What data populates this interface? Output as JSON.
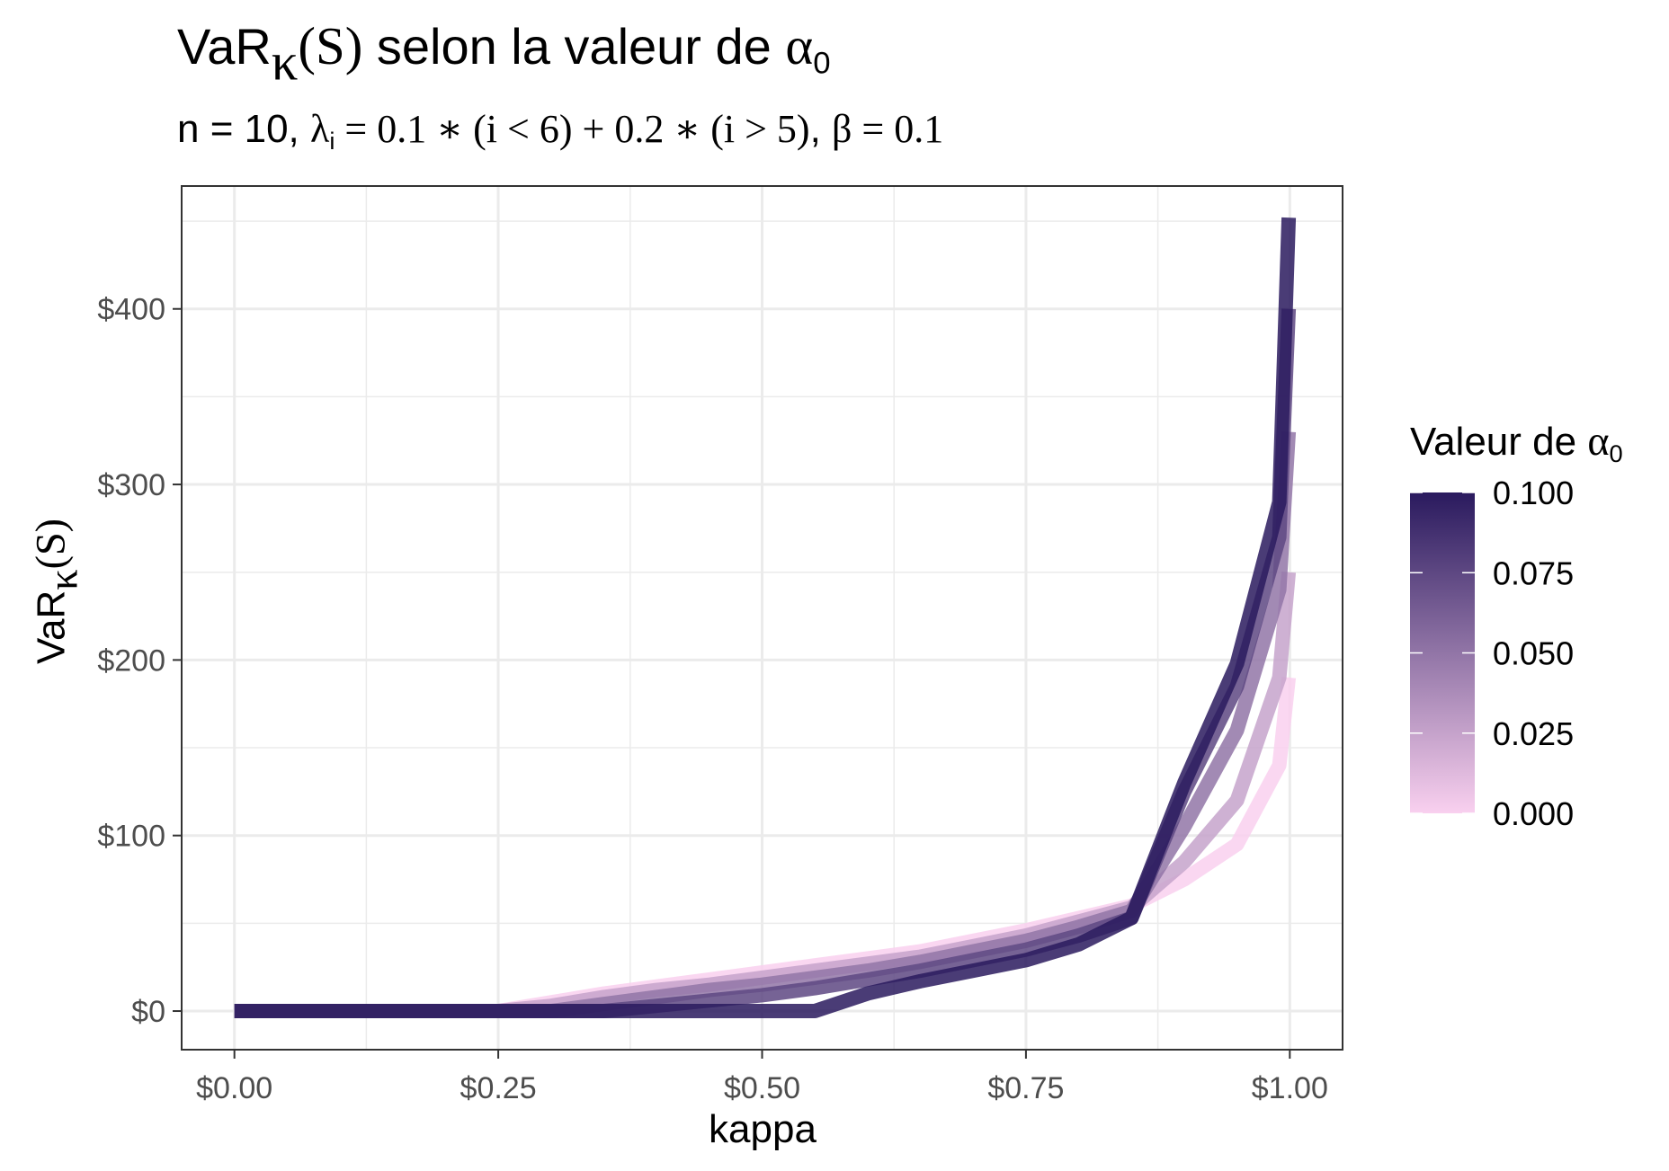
{
  "title": {
    "prefix": "VaR",
    "kappa_sym": "κ",
    "paren_s": "(S)",
    "middle": " selon la valeur de ",
    "alpha_sym": "α",
    "alpha_sub": "0"
  },
  "subtitle": {
    "t1": "n = 10, ",
    "lambda_sym": "λ",
    "lambda_sub": "i",
    "t2": " = 0.1 ∗ ",
    "t3": "(i < 6)",
    "t4": " + 0.2 ∗ ",
    "t5": "(i > 5)",
    "t6": ", ",
    "beta_sym": "β",
    "t7": " = 0.1"
  },
  "legend": {
    "title_text": "Valeur de ",
    "alpha_sym": "α",
    "alpha_sub": "0",
    "ticks": [
      "0.100",
      "0.075",
      "0.050",
      "0.025",
      "0.000"
    ],
    "color_high": "#2a1a5e",
    "color_low": "#f9d0ef",
    "range": [
      0,
      0.1
    ]
  },
  "chart_data": {
    "type": "line",
    "xlabel": "kappa",
    "ylabel": {
      "prefix": "VaR",
      "kappa_sym": "κ",
      "paren_s": "(S)"
    },
    "x_ticks": [
      "$0.00",
      "$0.25",
      "$0.50",
      "$0.75",
      "$1.00"
    ],
    "y_ticks": [
      "$0",
      "$100",
      "$200",
      "$300",
      "$400"
    ],
    "xlim": [
      -0.05,
      1.05
    ],
    "ylim": [
      -22,
      470
    ],
    "grid": true,
    "legend_position": "right",
    "color_variable": "Valeur de α0",
    "x": [
      0,
      0.05,
      0.1,
      0.15,
      0.2,
      0.25,
      0.3,
      0.35,
      0.4,
      0.45,
      0.5,
      0.55,
      0.6,
      0.65,
      0.7,
      0.75,
      0.8,
      0.85,
      0.9,
      0.95,
      0.99,
      0.999
    ],
    "series": [
      {
        "alpha0": 0.0,
        "values": [
          0,
          0,
          0,
          0,
          0,
          0,
          5,
          10,
          14,
          18,
          22,
          26,
          30,
          34,
          40,
          46,
          53,
          60,
          75,
          95,
          140,
          190
        ]
      },
      {
        "alpha0": 0.025,
        "values": [
          0,
          0,
          0,
          0,
          0,
          0,
          3,
          8,
          12,
          15,
          19,
          23,
          27,
          31,
          37,
          43,
          51,
          59,
          85,
          120,
          190,
          250
        ]
      },
      {
        "alpha0": 0.05,
        "values": [
          0,
          0,
          0,
          0,
          0,
          0,
          0,
          4,
          8,
          12,
          15,
          19,
          23,
          28,
          34,
          40,
          48,
          57,
          105,
          160,
          240,
          330
        ]
      },
      {
        "alpha0": 0.075,
        "values": [
          0,
          0,
          0,
          0,
          0,
          0,
          0,
          0,
          3,
          6,
          9,
          13,
          18,
          23,
          29,
          35,
          43,
          53,
          125,
          185,
          270,
          400
        ]
      },
      {
        "alpha0": 0.1,
        "values": [
          0,
          0,
          0,
          0,
          0,
          0,
          0,
          0,
          0,
          0,
          0,
          0,
          10,
          17,
          23,
          29,
          38,
          53,
          130,
          198,
          290,
          452
        ]
      }
    ]
  }
}
